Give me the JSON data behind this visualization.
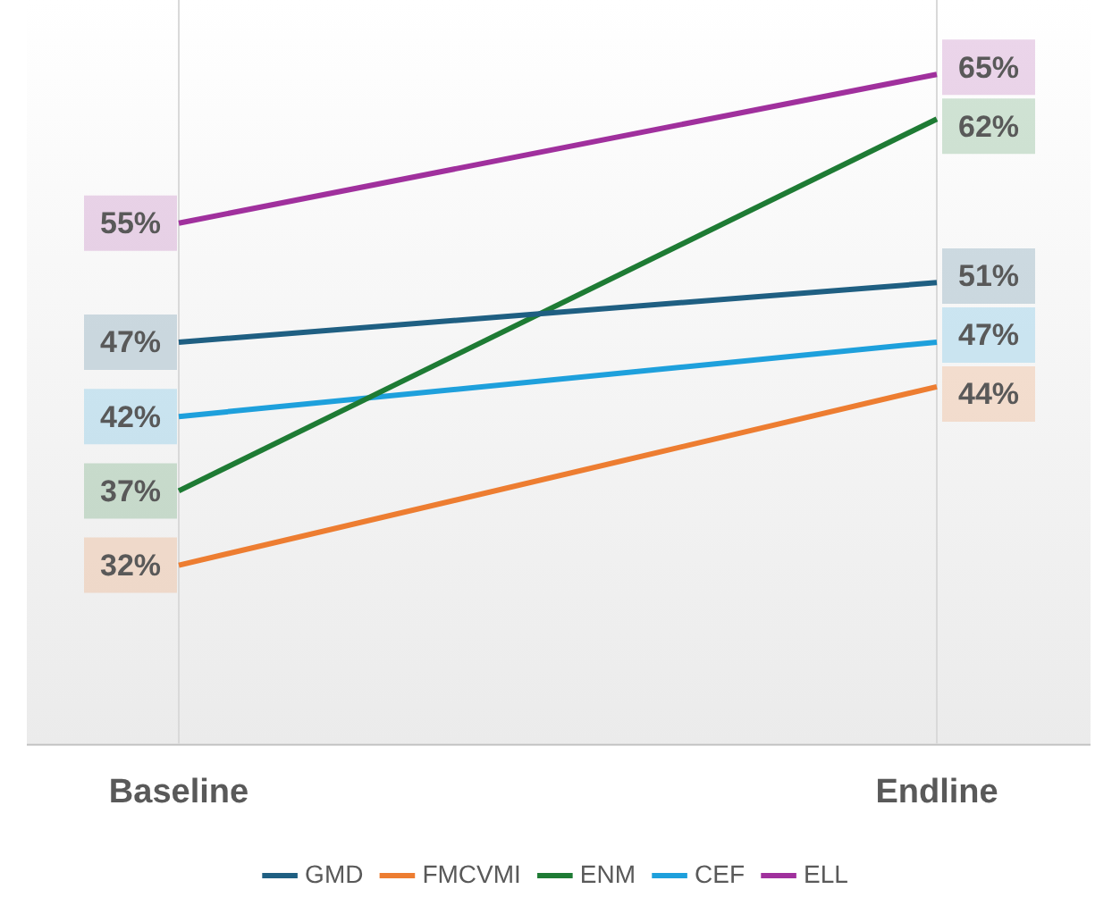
{
  "chart_data": {
    "type": "line",
    "categories": [
      "Baseline",
      "Endline"
    ],
    "series": [
      {
        "name": "GMD",
        "color": "#1f5f82",
        "values": [
          47,
          51
        ],
        "value_labels": [
          "47%",
          "51%"
        ]
      },
      {
        "name": "FMCVMI",
        "color": "#ed7d31",
        "values": [
          32,
          44
        ],
        "value_labels": [
          "32%",
          "44%"
        ]
      },
      {
        "name": "ENM",
        "color": "#1e7b34",
        "values": [
          37,
          62
        ],
        "value_labels": [
          "37%",
          "62%"
        ]
      },
      {
        "name": "CEF",
        "color": "#1ea0dc",
        "values": [
          42,
          47
        ],
        "value_labels": [
          "42%",
          "47%"
        ]
      },
      {
        "name": "ELL",
        "color": "#a0309d",
        "values": [
          55,
          65
        ],
        "value_labels": [
          "55%",
          "65%"
        ]
      }
    ],
    "ylim": [
      20,
      70
    ],
    "grid": "x",
    "legend": "bottom",
    "tick_labels": "x",
    "marker": "none",
    "line_style": "solid"
  }
}
